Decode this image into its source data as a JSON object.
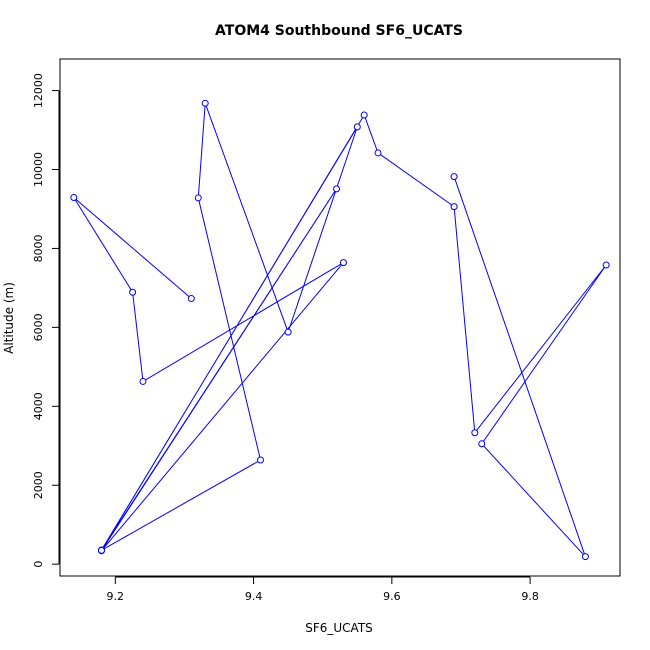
{
  "chart_data": {
    "type": "line",
    "title": "ATOM4 Southbound SF6_UCATS",
    "xlabel": "SF6_UCATS",
    "ylabel": "Altitude (m)",
    "xlim": [
      9.12,
      9.93
    ],
    "ylim": [
      -300,
      12800
    ],
    "xticks": [
      9.2,
      9.4,
      9.6,
      9.8
    ],
    "xtick_labels": [
      "9.2",
      "9.4",
      "9.6",
      "9.8"
    ],
    "yticks": [
      0,
      2000,
      4000,
      6000,
      8000,
      10000,
      12000
    ],
    "ytick_labels": [
      "0",
      "2000",
      "4000",
      "6000",
      "8000",
      "10000",
      "12000"
    ],
    "grid": false,
    "legend": false,
    "markers": "open-circle",
    "colors": {
      "series": "#0000ff",
      "axis": "#000000"
    },
    "series": [
      {
        "x": [
          9.31,
          9.14,
          9.225,
          9.24,
          9.53,
          9.18,
          9.52,
          9.18,
          9.55,
          9.45,
          9.33,
          9.32,
          9.41,
          9.18,
          9.56,
          9.58,
          9.69,
          9.72,
          9.91,
          9.73,
          9.88,
          9.69
        ],
        "y": [
          6730,
          9290,
          6890,
          4630,
          7640,
          340,
          9510,
          360,
          11080,
          5880,
          11680,
          9280,
          2640,
          350,
          11380,
          10420,
          9060,
          3330,
          7580,
          3050,
          190,
          9820
        ]
      }
    ]
  }
}
